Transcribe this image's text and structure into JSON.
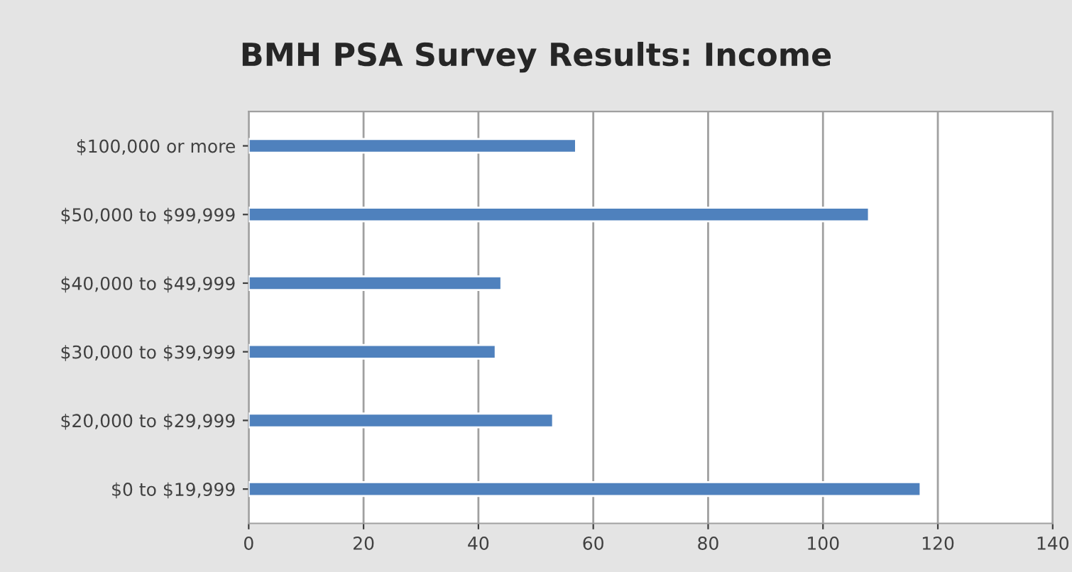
{
  "chart_data": {
    "type": "bar",
    "orientation": "horizontal",
    "title": "BMH PSA Survey Results: Income",
    "categories": [
      "$100,000 or more",
      "$50,000 to $99,999",
      "$40,000 to $49,999",
      "$30,000 to $39,999",
      "$20,000 to $29,999",
      "$0 to $19,999"
    ],
    "values": [
      57,
      108,
      44,
      43,
      53,
      117
    ],
    "color": "#4f81bd",
    "xlim": [
      0,
      140
    ],
    "xticks": [
      0,
      20,
      40,
      60,
      80,
      100,
      120,
      140
    ],
    "grid": "x"
  }
}
